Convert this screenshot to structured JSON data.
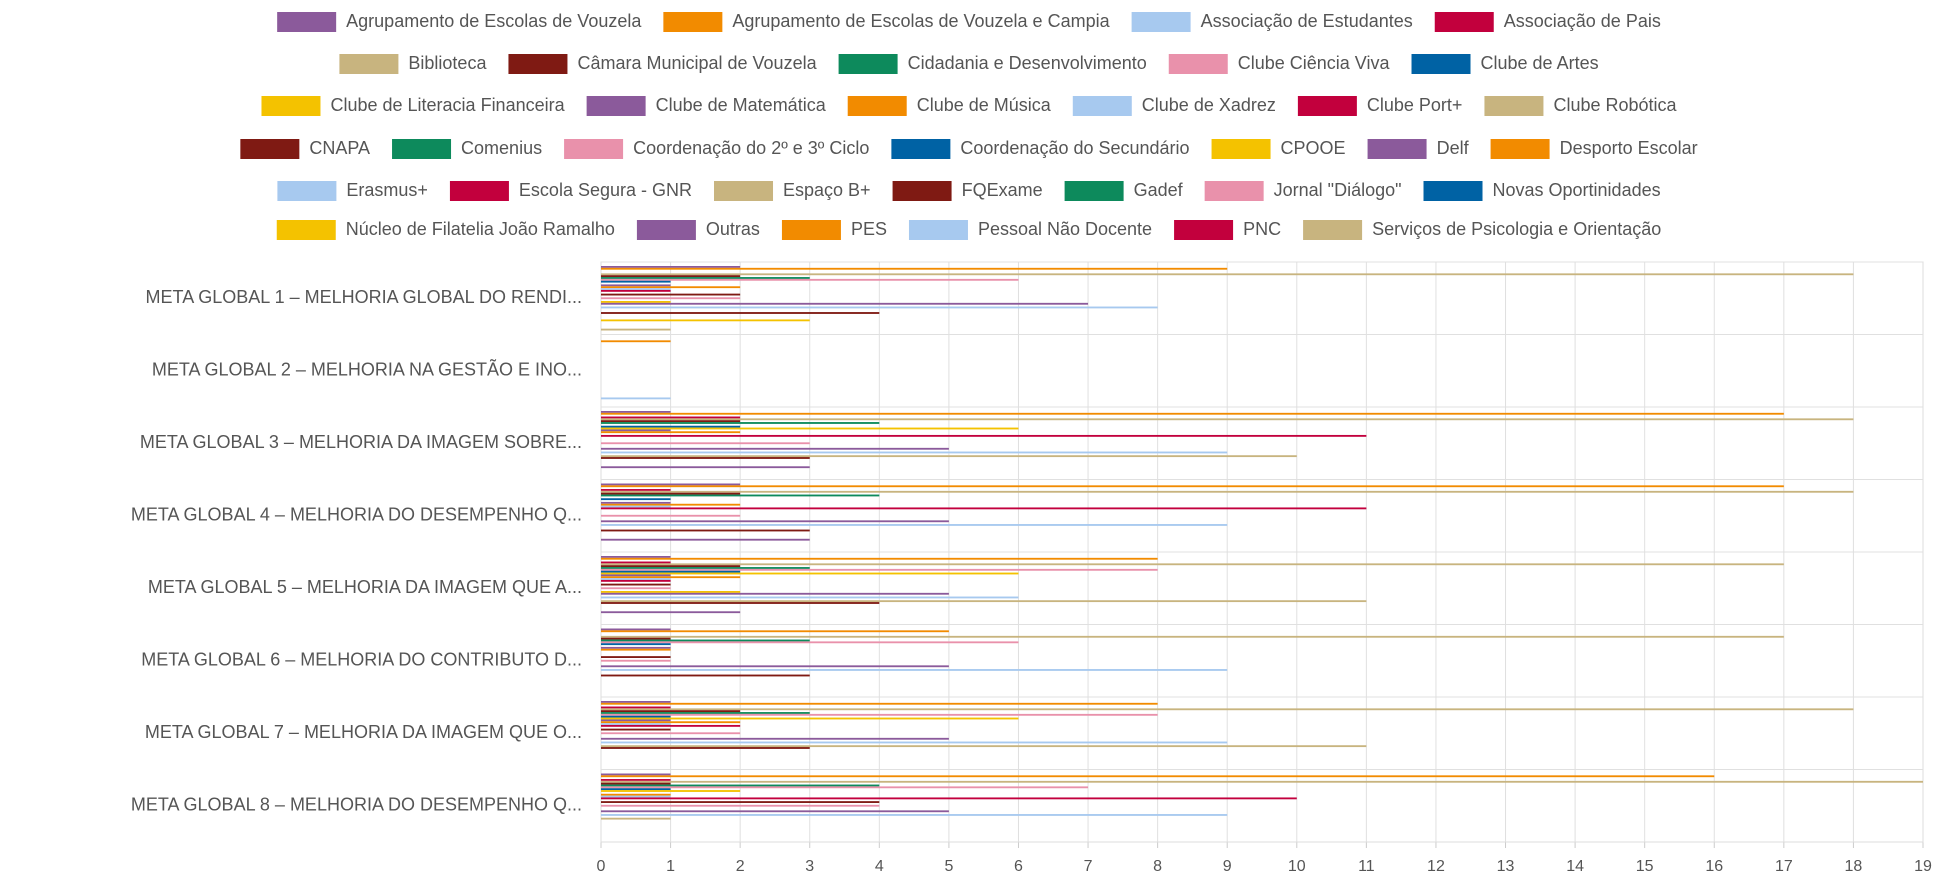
{
  "chart_data": {
    "type": "hbar",
    "categories": [
      "META GLOBAL 1 – MELHORIA GLOBAL DO RENDI...",
      "META GLOBAL 2 – MELHORIA NA GESTÃO E INO...",
      "META GLOBAL 3 – MELHORIA DA IMAGEM SOBRE...",
      "META GLOBAL 4 – MELHORIA DO DESEMPENHO Q...",
      "META GLOBAL 5 – MELHORIA DA IMAGEM QUE A...",
      "META GLOBAL 6 – MELHORIA DO CONTRIBUTO D...",
      "META GLOBAL 7 – MELHORIA DA IMAGEM QUE O...",
      "META GLOBAL 8 – MELHORIA DO DESEMPENHO Q..."
    ],
    "series": [
      {
        "name": "Agrupamento de Escolas de Vouzela",
        "color": "#8b5a9b",
        "values": [
          2,
          0,
          1,
          2,
          1,
          1,
          1,
          1
        ]
      },
      {
        "name": "Agrupamento de Escolas de Vouzela e Campia",
        "color": "#f28b00",
        "values": [
          9,
          1,
          17,
          17,
          8,
          5,
          8,
          16
        ]
      },
      {
        "name": "Associação de Estudantes",
        "color": "#a7c9ef",
        "values": [
          0,
          0,
          0,
          0,
          0,
          0,
          0,
          0
        ]
      },
      {
        "name": "Associação de Pais",
        "color": "#c2003d",
        "values": [
          0,
          0,
          2,
          1,
          1,
          0,
          1,
          1
        ]
      },
      {
        "name": "Biblioteca",
        "color": "#c8b47f",
        "values": [
          18,
          0,
          18,
          18,
          17,
          17,
          18,
          19
        ]
      },
      {
        "name": "Câmara Municipal de Vouzela",
        "color": "#7f1a13",
        "values": [
          2,
          0,
          2,
          2,
          2,
          1,
          2,
          1
        ]
      },
      {
        "name": "Cidadania e Desenvolvimento",
        "color": "#0d8a5c",
        "values": [
          3,
          0,
          4,
          4,
          3,
          3,
          3,
          4
        ]
      },
      {
        "name": "Clube Ciência Viva",
        "color": "#e991ab",
        "values": [
          6,
          0,
          0,
          0,
          8,
          6,
          8,
          7
        ]
      },
      {
        "name": "Clube de Artes",
        "color": "#0062a4",
        "values": [
          1,
          0,
          2,
          1,
          2,
          1,
          1,
          1
        ]
      },
      {
        "name": "Clube de Literacia Financeira",
        "color": "#f4c200",
        "values": [
          0,
          0,
          6,
          0,
          6,
          0,
          6,
          2
        ]
      },
      {
        "name": "Clube de Matemática",
        "color": "#8b5a9b",
        "values": [
          1,
          0,
          1,
          1,
          1,
          1,
          1,
          0
        ]
      },
      {
        "name": "Clube de Música",
        "color": "#f28b00",
        "values": [
          2,
          0,
          2,
          2,
          2,
          1,
          2,
          1
        ]
      },
      {
        "name": "Clube de Xadrez",
        "color": "#a7c9ef",
        "values": [
          1,
          0,
          0,
          1,
          1,
          0,
          1,
          1
        ]
      },
      {
        "name": "Clube Port+",
        "color": "#c2003d",
        "values": [
          1,
          0,
          11,
          11,
          1,
          0,
          2,
          10
        ]
      },
      {
        "name": "Clube Robótica",
        "color": "#c8b47f",
        "values": [
          0,
          0,
          0,
          0,
          0,
          0,
          0,
          0
        ]
      },
      {
        "name": "CNAPA",
        "color": "#7f1a13",
        "values": [
          2,
          0,
          0,
          0,
          1,
          1,
          1,
          4
        ]
      },
      {
        "name": "Comenius",
        "color": "#0d8a5c",
        "values": [
          0,
          0,
          0,
          0,
          0,
          0,
          0,
          0
        ]
      },
      {
        "name": "Coordenação do 2º e 3º Ciclo",
        "color": "#e991ab",
        "values": [
          2,
          0,
          3,
          2,
          1,
          1,
          2,
          4
        ]
      },
      {
        "name": "Coordenação do Secundário",
        "color": "#0062a4",
        "values": [
          0,
          0,
          0,
          0,
          0,
          0,
          0,
          0
        ]
      },
      {
        "name": "CPOOE",
        "color": "#f4c200",
        "values": [
          1,
          0,
          0,
          0,
          2,
          0,
          0,
          0
        ]
      },
      {
        "name": "Delf",
        "color": "#8b5a9b",
        "values": [
          7,
          0,
          5,
          5,
          5,
          5,
          5,
          5
        ]
      },
      {
        "name": "Desporto Escolar",
        "color": "#f28b00",
        "values": [
          0,
          0,
          0,
          0,
          0,
          0,
          0,
          0
        ]
      },
      {
        "name": "Erasmus+",
        "color": "#a7c9ef",
        "values": [
          8,
          0,
          9,
          9,
          6,
          9,
          9,
          9
        ]
      },
      {
        "name": "Escola Segura - GNR",
        "color": "#c2003d",
        "values": [
          0,
          0,
          0,
          0,
          0,
          0,
          0,
          0
        ]
      },
      {
        "name": "Espaço B+",
        "color": "#c8b47f",
        "values": [
          0,
          0,
          10,
          0,
          11,
          0,
          11,
          1
        ]
      },
      {
        "name": "FQExame",
        "color": "#7f1a13",
        "values": [
          4,
          0,
          3,
          3,
          4,
          3,
          3,
          0
        ]
      },
      {
        "name": "Gadef",
        "color": "#0d8a5c",
        "values": [
          0,
          0,
          0,
          0,
          0,
          0,
          0,
          0
        ]
      },
      {
        "name": "Jornal \"Diálogo\"",
        "color": "#e991ab",
        "values": [
          0,
          0,
          0,
          0,
          0,
          0,
          0,
          0
        ]
      },
      {
        "name": "Novas Oportinidades",
        "color": "#0062a4",
        "values": [
          0,
          0,
          0,
          0,
          0,
          0,
          0,
          0
        ]
      },
      {
        "name": "Núcleo de Filatelia João Ramalho",
        "color": "#f4c200",
        "values": [
          3,
          0,
          0,
          0,
          0,
          0,
          0,
          0
        ]
      },
      {
        "name": "Outras",
        "color": "#8b5a9b",
        "values": [
          0,
          0,
          3,
          3,
          2,
          0,
          0,
          0
        ]
      },
      {
        "name": "PES",
        "color": "#f28b00",
        "values": [
          0,
          0,
          0,
          0,
          0,
          0,
          0,
          0
        ]
      },
      {
        "name": "Pessoal Não Docente",
        "color": "#a7c9ef",
        "values": [
          0,
          1,
          0,
          0,
          0,
          0,
          0,
          0
        ]
      },
      {
        "name": "PNC",
        "color": "#c2003d",
        "values": [
          0,
          0,
          0,
          0,
          0,
          0,
          0,
          0
        ]
      },
      {
        "name": "Serviços de Psicologia e Orientação",
        "color": "#c8b47f",
        "values": [
          1,
          0,
          0,
          0,
          0,
          0,
          0,
          0
        ]
      }
    ],
    "xlim": [
      0,
      19
    ],
    "xticks": [
      0,
      1,
      2,
      3,
      4,
      5,
      6,
      7,
      8,
      9,
      10,
      11,
      12,
      13,
      14,
      15,
      16,
      17,
      18,
      19
    ],
    "grid": true
  }
}
